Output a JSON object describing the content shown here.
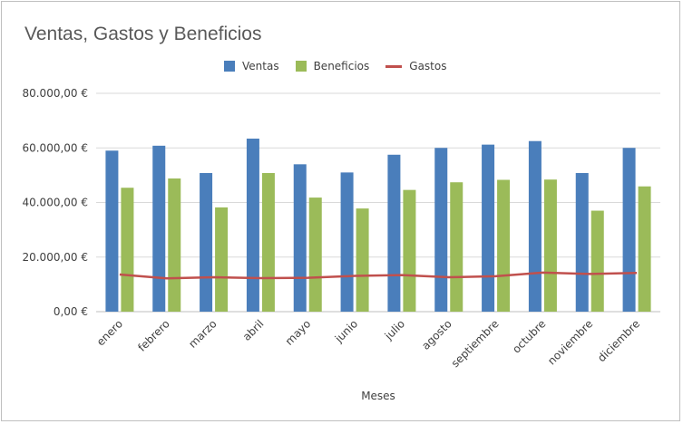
{
  "chart_data": {
    "type": "bar",
    "title": "Ventas, Gastos y Beneficios",
    "xlabel": "Meses",
    "ylabel": "",
    "categories": [
      "enero",
      "febrero",
      "marzo",
      "abril",
      "mayo",
      "junio",
      "julio",
      "agosto",
      "septiembre",
      "octubre",
      "noviembre",
      "diciembre"
    ],
    "series": [
      {
        "name": "Ventas",
        "kind": "bar",
        "color": "#4a7ebb",
        "values": [
          59000,
          60800,
          50800,
          63400,
          54000,
          51000,
          57500,
          60000,
          61200,
          62500,
          50800,
          60000
        ]
      },
      {
        "name": "Beneficios",
        "kind": "bar",
        "color": "#9bbb59",
        "values": [
          45400,
          48800,
          38200,
          50800,
          41800,
          37800,
          44600,
          47400,
          48300,
          48400,
          37000,
          45900
        ]
      },
      {
        "name": "Gastos",
        "kind": "line",
        "color": "#c0504d",
        "values": [
          13600,
          12200,
          12600,
          12300,
          12400,
          13100,
          13400,
          12600,
          13000,
          14300,
          13800,
          14200
        ]
      }
    ],
    "ylim": [
      0,
      80000
    ],
    "yticks": [
      0,
      20000,
      40000,
      60000,
      80000
    ],
    "ytick_labels": [
      "0,00 €",
      "20.000,00 €",
      "40.000,00 €",
      "60.000,00 €",
      "80.000,00 €"
    ],
    "grid": true,
    "legend": "top"
  }
}
